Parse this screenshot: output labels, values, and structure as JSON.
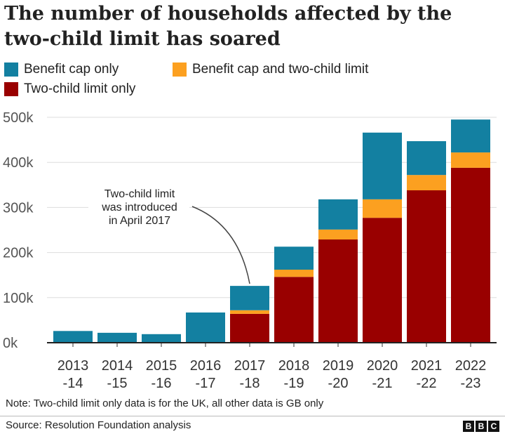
{
  "chart_data": {
    "type": "bar",
    "stacked": true,
    "title": "The number of households affected by the two-child limit has soared",
    "categories": [
      [
        "2013",
        "-14"
      ],
      [
        "2014",
        "-15"
      ],
      [
        "2015",
        "-16"
      ],
      [
        "2016",
        "-17"
      ],
      [
        "2017",
        "-18"
      ],
      [
        "2018",
        "-19"
      ],
      [
        "2019",
        "-20"
      ],
      [
        "2020",
        "-21"
      ],
      [
        "2021",
        "-22"
      ],
      [
        "2022",
        "-23"
      ]
    ],
    "series": [
      {
        "name": "Two-child limit only",
        "color": "#990000",
        "values": [
          0,
          0,
          0,
          0,
          64000,
          146000,
          229000,
          277000,
          338000,
          388000
        ]
      },
      {
        "name": "Benefit cap and two-child limit",
        "color": "#fca020",
        "values": [
          0,
          0,
          0,
          0,
          8000,
          16000,
          22000,
          41000,
          34000,
          34000
        ]
      },
      {
        "name": "Benefit cap only",
        "color": "#1380a1",
        "values": [
          26000,
          22000,
          19000,
          67000,
          54000,
          51000,
          67000,
          148000,
          75000,
          73000
        ]
      }
    ],
    "legend_order": [
      "Benefit cap only",
      "Benefit cap and two-child limit",
      "Two-child limit only"
    ],
    "legend_placement": "top",
    "ylim": [
      0,
      500000
    ],
    "yticks": [
      0,
      100000,
      200000,
      300000,
      400000,
      500000
    ],
    "ytick_labels": [
      "0k",
      "100k",
      "200k",
      "300k",
      "400k",
      "500k"
    ],
    "grid": true,
    "annotation": {
      "lines": [
        "Two-child limit",
        "was introduced",
        "in April 2017"
      ],
      "points_to": "2017-18"
    },
    "note": "Note: Two-child limit only data is for the UK, all other data is GB only",
    "source": "Source: Resolution Foundation analysis",
    "logo": "BBC"
  }
}
